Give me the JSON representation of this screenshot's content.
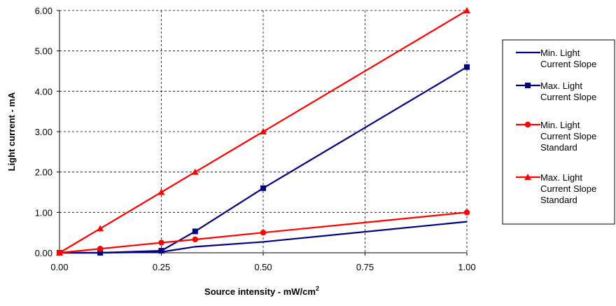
{
  "chart_data": {
    "type": "line",
    "xlabel": "Source intensity - mW/cm",
    "xlabel_superscript": "2",
    "ylabel": "Light current - mA",
    "xlim": [
      0,
      1
    ],
    "ylim": [
      0,
      6
    ],
    "x_ticks": [
      "0.00",
      "0.25",
      "0.50",
      "0.75",
      "1.00"
    ],
    "y_ticks": [
      "0.00",
      "1.00",
      "2.00",
      "3.00",
      "4.00",
      "5.00",
      "6.00"
    ],
    "grid": "dashed",
    "legend_position": "right",
    "series": [
      {
        "name_lines": [
          "Min. Light",
          "Current Slope"
        ],
        "color": "#000080",
        "marker": "none",
        "points": [
          [
            0,
            0
          ],
          [
            0.1,
            0
          ],
          [
            0.25,
            0.02
          ],
          [
            0.333,
            0.15
          ],
          [
            0.5,
            0.27
          ],
          [
            1.0,
            0.77
          ]
        ]
      },
      {
        "name_lines": [
          "Max. Light",
          "Current Slope"
        ],
        "color": "#000080",
        "marker": "square",
        "points": [
          [
            0,
            0
          ],
          [
            0.1,
            0
          ],
          [
            0.25,
            0.05
          ],
          [
            0.333,
            0.53
          ],
          [
            0.5,
            1.6
          ],
          [
            1.0,
            4.6
          ]
        ]
      },
      {
        "name_lines": [
          "Min. Light",
          "Current Slope",
          "Standard"
        ],
        "color": "#ff0000",
        "marker": "circle",
        "points": [
          [
            0,
            0
          ],
          [
            0.1,
            0.1
          ],
          [
            0.25,
            0.25
          ],
          [
            0.333,
            0.33
          ],
          [
            0.5,
            0.5
          ],
          [
            1.0,
            1.0
          ]
        ]
      },
      {
        "name_lines": [
          "Max. Light",
          "Current Slope",
          "Standard"
        ],
        "color": "#ff0000",
        "marker": "triangle",
        "points": [
          [
            0,
            0
          ],
          [
            0.1,
            0.6
          ],
          [
            0.25,
            1.5
          ],
          [
            0.333,
            2.0
          ],
          [
            0.5,
            3.0
          ],
          [
            1.0,
            6.0
          ]
        ]
      }
    ]
  }
}
